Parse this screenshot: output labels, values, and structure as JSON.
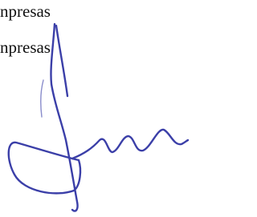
{
  "lines": [
    "npresas",
    "npresas"
  ]
}
